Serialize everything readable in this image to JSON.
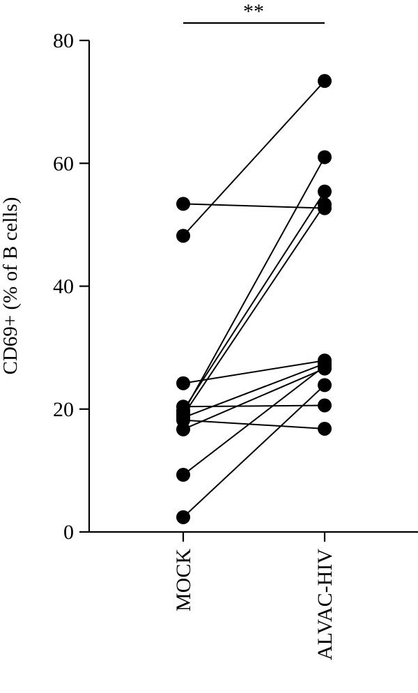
{
  "chart_data": {
    "type": "scatter",
    "title": "",
    "xlabel": "",
    "ylabel": "CD69+ (% of B cells)",
    "categories": [
      "MOCK",
      "ALVAC-HIV"
    ],
    "ylim": [
      0,
      80
    ],
    "yticks": [
      0,
      20,
      40,
      60,
      80
    ],
    "grid": false,
    "paired": true,
    "pairs": [
      {
        "MOCK": 53.4,
        "ALVAC-HIV": 52.7
      },
      {
        "MOCK": 48.2,
        "ALVAC-HIV": 73.4
      },
      {
        "MOCK": 24.2,
        "ALVAC-HIV": 27.9
      },
      {
        "MOCK": 20.4,
        "ALVAC-HIV": 20.6
      },
      {
        "MOCK": 19.8,
        "ALVAC-HIV": 55.4
      },
      {
        "MOCK": 19.4,
        "ALVAC-HIV": 61.0
      },
      {
        "MOCK": 19.0,
        "ALVAC-HIV": 53.3
      },
      {
        "MOCK": 18.6,
        "ALVAC-HIV": 27.4
      },
      {
        "MOCK": 18.2,
        "ALVAC-HIV": 16.8
      },
      {
        "MOCK": 16.7,
        "ALVAC-HIV": 26.6
      },
      {
        "MOCK": 9.3,
        "ALVAC-HIV": 27.0
      },
      {
        "MOCK": 2.4,
        "ALVAC-HIV": 23.9
      }
    ],
    "annotations": [
      {
        "text": "**",
        "between": [
          "MOCK",
          "ALVAC-HIV"
        ]
      }
    ]
  }
}
